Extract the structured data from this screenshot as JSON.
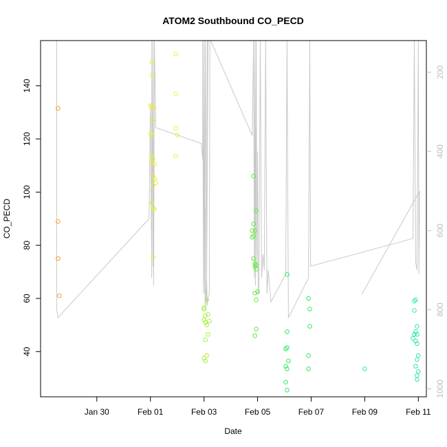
{
  "chart_data": {
    "type": "scatter",
    "title": "ATOM2 Southbound CO_PECD",
    "xlabel": "Date",
    "ylabel": "CO_PECD",
    "x_unit": "days since Jan 28",
    "xlim": [
      -0.1,
      14.3
    ],
    "ylim": [
      23,
      157
    ],
    "x_ticks": [
      {
        "label": "Jan 30",
        "value": 2
      },
      {
        "label": "Feb 01",
        "value": 4
      },
      {
        "label": "Feb 03",
        "value": 6
      },
      {
        "label": "Feb 05",
        "value": 8
      },
      {
        "label": "Feb 07",
        "value": 10
      },
      {
        "label": "Feb 09",
        "value": 12
      },
      {
        "label": "Feb 11",
        "value": 14
      }
    ],
    "y_ticks": [
      40,
      60,
      80,
      100,
      120,
      140
    ],
    "secondary_axis": {
      "label": "",
      "ylim": [
        1020,
        120
      ],
      "ticks": [
        200,
        400,
        600,
        800,
        1000
      ],
      "color": "#bdbdbd"
    },
    "colors": {
      "track": "#c8c8c8",
      "axis": "#000000"
    },
    "series": [
      {
        "name": "group-1",
        "color": "#f59a3a",
        "points": [
          [
            0.55,
            131.5
          ],
          [
            0.55,
            89
          ],
          [
            0.55,
            75
          ],
          [
            0.6,
            61
          ]
        ]
      },
      {
        "name": "group-2",
        "color": "#e9ef3c",
        "points": [
          [
            4.0,
            132.5
          ],
          [
            4.05,
            132
          ],
          [
            4.1,
            131.5
          ],
          [
            4.05,
            149
          ],
          [
            4.05,
            144
          ],
          [
            4.1,
            127
          ],
          [
            4.0,
            122
          ],
          [
            4.05,
            121.5
          ],
          [
            4.05,
            113.5
          ],
          [
            4.1,
            112.5
          ],
          [
            4.05,
            111
          ],
          [
            4.15,
            110.5
          ],
          [
            4.1,
            106
          ],
          [
            4.15,
            105
          ],
          [
            4.2,
            103.5
          ],
          [
            4.1,
            102.5
          ],
          [
            4.05,
            96
          ],
          [
            4.1,
            94
          ],
          [
            4.15,
            93.5
          ],
          [
            4.1,
            75.5
          ],
          [
            4.95,
            152
          ],
          [
            4.95,
            137
          ],
          [
            4.95,
            124
          ],
          [
            5.0,
            121.5
          ],
          [
            4.95,
            113.5
          ]
        ]
      },
      {
        "name": "group-3",
        "color": "#a6ef3c",
        "points": [
          [
            6.0,
            56.5
          ],
          [
            6.0,
            56
          ],
          [
            6.05,
            53.5
          ],
          [
            6.15,
            54
          ],
          [
            6.0,
            52
          ],
          [
            6.05,
            51
          ],
          [
            6.1,
            50
          ],
          [
            6.2,
            51.5
          ],
          [
            6.15,
            46.5
          ],
          [
            6.05,
            44.5
          ],
          [
            6.1,
            38.5
          ],
          [
            6.0,
            37.5
          ],
          [
            6.05,
            36.5
          ],
          [
            6.1,
            59.5
          ]
        ]
      },
      {
        "name": "group-4",
        "color": "#5ee83a",
        "points": [
          [
            7.85,
            106
          ],
          [
            7.85,
            88
          ],
          [
            7.8,
            85.5
          ],
          [
            7.9,
            85.5
          ],
          [
            7.85,
            83.5
          ],
          [
            7.8,
            83
          ],
          [
            7.85,
            75
          ],
          [
            7.9,
            73
          ],
          [
            7.95,
            72.5
          ],
          [
            7.9,
            72
          ],
          [
            7.95,
            71
          ],
          [
            7.95,
            93
          ],
          [
            7.9,
            62
          ],
          [
            8.0,
            62.5
          ],
          [
            7.95,
            59.5
          ],
          [
            7.95,
            48.5
          ],
          [
            7.9,
            46
          ]
        ]
      },
      {
        "name": "group-5",
        "color": "#35e65a",
        "points": [
          [
            9.1,
            69
          ],
          [
            9.1,
            47.5
          ],
          [
            9.05,
            41
          ],
          [
            9.1,
            41.5
          ],
          [
            9.15,
            36.5
          ],
          [
            9.05,
            34.5
          ],
          [
            9.1,
            33.5
          ],
          [
            9.05,
            28.5
          ],
          [
            9.1,
            25.5
          ],
          [
            9.9,
            60
          ],
          [
            9.95,
            56
          ],
          [
            9.95,
            49.5
          ],
          [
            9.9,
            38.5
          ],
          [
            9.9,
            33.5
          ]
        ]
      },
      {
        "name": "group-6",
        "color": "#2ee8a8",
        "points": [
          [
            12.0,
            33.5
          ],
          [
            13.85,
            59
          ],
          [
            13.9,
            59.5
          ],
          [
            13.85,
            55.5
          ],
          [
            13.95,
            49.5
          ],
          [
            13.9,
            47.5
          ],
          [
            13.85,
            46.5
          ],
          [
            13.95,
            46.5
          ],
          [
            13.8,
            45
          ],
          [
            13.9,
            44
          ],
          [
            13.95,
            43
          ],
          [
            14.0,
            38.5
          ],
          [
            13.95,
            37
          ],
          [
            13.9,
            34.5
          ],
          [
            14.0,
            32.5
          ],
          [
            13.95,
            31
          ],
          [
            13.95,
            29.5
          ]
        ]
      }
    ],
    "track_line": {
      "name": "pressure-track",
      "axis": "secondary",
      "points": [
        [
          0.5,
          120
        ],
        [
          0.5,
          800
        ],
        [
          0.55,
          820
        ],
        [
          3.95,
          570
        ],
        [
          4.0,
          280
        ],
        [
          4.05,
          720
        ],
        [
          4.05,
          120
        ],
        [
          4.1,
          690
        ],
        [
          4.1,
          120
        ],
        [
          4.12,
          740
        ],
        [
          4.15,
          120
        ],
        [
          4.2,
          340
        ],
        [
          5.9,
          380
        ],
        [
          5.95,
          420
        ],
        [
          5.95,
          120
        ],
        [
          5.98,
          760
        ],
        [
          6.0,
          120
        ],
        [
          6.02,
          560
        ],
        [
          6.03,
          560
        ],
        [
          6.05,
          540
        ],
        [
          6.05,
          760
        ],
        [
          6.1,
          740
        ],
        [
          6.1,
          780
        ],
        [
          6.12,
          120
        ],
        [
          6.15,
          120
        ],
        [
          6.1,
          720
        ],
        [
          6.05,
          120
        ],
        [
          6.03,
          760
        ],
        [
          6.0,
          120
        ],
        [
          6.02,
          720
        ],
        [
          6.05,
          800
        ],
        [
          6.1,
          720
        ],
        [
          6.12,
          790
        ],
        [
          6.15,
          770
        ],
        [
          6.2,
          760
        ],
        [
          6.22,
          120
        ],
        [
          6.25,
          120
        ],
        [
          7.8,
          360
        ],
        [
          7.85,
          120
        ],
        [
          7.88,
          720
        ],
        [
          7.9,
          120
        ],
        [
          7.92,
          740
        ],
        [
          7.95,
          120
        ],
        [
          7.97,
          690
        ],
        [
          8.0,
          400
        ],
        [
          8.02,
          760
        ],
        [
          8.05,
          750
        ],
        [
          8.1,
          120
        ],
        [
          8.15,
          720
        ],
        [
          8.2,
          660
        ],
        [
          8.25,
          700
        ],
        [
          8.3,
          120
        ],
        [
          8.35,
          760
        ],
        [
          8.4,
          700
        ],
        [
          8.5,
          780
        ],
        [
          9.05,
          710
        ],
        [
          9.1,
          120
        ],
        [
          9.15,
          820
        ],
        [
          9.9,
          720
        ],
        [
          9.95,
          120
        ],
        [
          9.98,
          690
        ],
        [
          13.8,
          620
        ],
        [
          13.85,
          120
        ],
        [
          13.9,
          680
        ],
        [
          13.95,
          700
        ],
        [
          14.0,
          120
        ],
        [
          14.02,
          710
        ],
        [
          14.05,
          500
        ],
        [
          11.9,
          760
        ]
      ]
    }
  }
}
